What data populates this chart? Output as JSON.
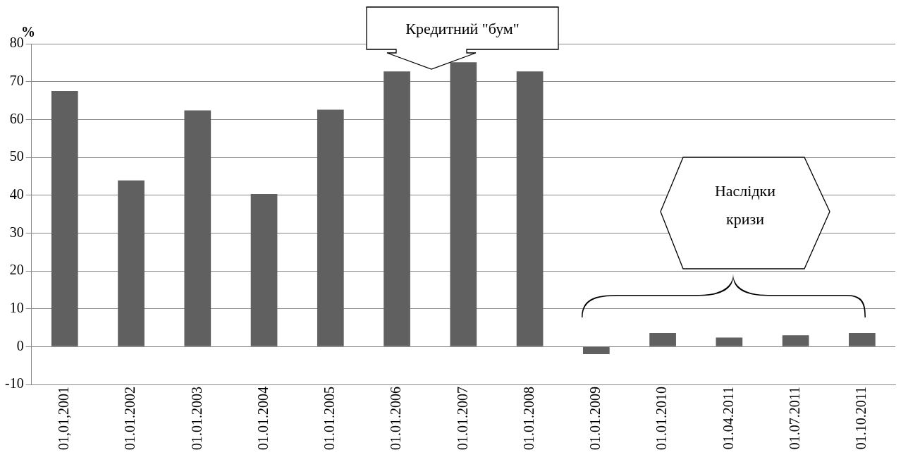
{
  "chart_data": {
    "type": "bar",
    "ylabel": "%",
    "categories": [
      "01,01,2001",
      "01.01.2002",
      "01.01.2003",
      "01.01.2004",
      "01.01.2005",
      "01.01.2006",
      "01.01.2007",
      "01.01.2008",
      "01.01.2009",
      "01.01.2010",
      "01.04.2011",
      "01.07.2011",
      "01.10.2011"
    ],
    "values": [
      67.5,
      43.9,
      62.4,
      40.3,
      62.6,
      72.7,
      75.1,
      72.7,
      -2.0,
      3.6,
      2.4,
      3.0,
      3.6
    ],
    "color": "#606060",
    "ylim": [
      -10,
      80
    ],
    "yticks": [
      -10,
      0,
      10,
      20,
      30,
      40,
      50,
      60,
      70,
      80
    ],
    "grid": "y",
    "annotations": [
      "Кредитний \"бум\"",
      "Наслідки кризи"
    ]
  }
}
